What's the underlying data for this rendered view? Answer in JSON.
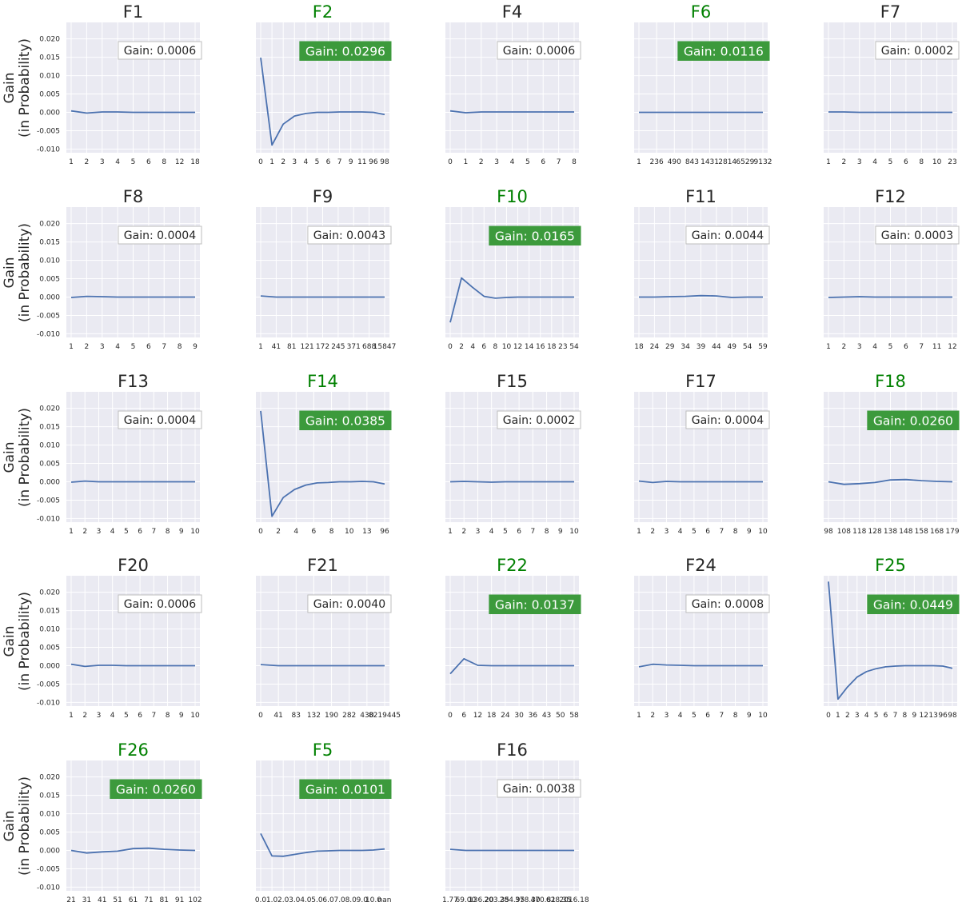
{
  "ylabel": "Gain\n(in Probability)",
  "colors": {
    "panel_bg": "#EAEAF2",
    "line": "#4C72B0",
    "title_default": "#262626",
    "title_highlight": "#008000",
    "gain_box_highlight": "#3C9A3C"
  },
  "chart_data": [
    {
      "type": "line",
      "title": "F1",
      "gain_label": "Gain: 0.0006",
      "highlight": false,
      "xticks": [
        "1",
        "2",
        "3",
        "4",
        "5",
        "6",
        "8",
        "12",
        "18"
      ],
      "y": [
        0.0004,
        -0.0002,
        0.0001,
        0.0001,
        0,
        0,
        0,
        0,
        0
      ],
      "ylim": [
        -0.011,
        0.0245
      ],
      "yticks": [
        "-0.010",
        "-0.005",
        "0.000",
        "0.005",
        "0.010",
        "0.015",
        "0.020"
      ]
    },
    {
      "type": "line",
      "title": "F2",
      "gain_label": "Gain: 0.0296",
      "highlight": true,
      "xticks": [
        "0",
        "1",
        "2",
        "3",
        "4",
        "5",
        "6",
        "7",
        "9",
        "11",
        "96",
        "98"
      ],
      "y": [
        0.0149,
        -0.0089,
        -0.0032,
        -0.001,
        -0.0003,
        0,
        0,
        0.0001,
        0.0001,
        0.0001,
        0,
        -0.0006
      ],
      "ylim": [
        -0.011,
        0.0245
      ]
    },
    {
      "type": "line",
      "title": "F4",
      "gain_label": "Gain: 0.0006",
      "highlight": false,
      "xticks": [
        "0",
        "1",
        "2",
        "3",
        "4",
        "5",
        "6",
        "7",
        "8"
      ],
      "y": [
        0.0004,
        -0.0001,
        0.0001,
        0.0001,
        0.0001,
        0.0001,
        0.0001,
        0.0001,
        0.0001
      ],
      "ylim": [
        -0.011,
        0.0245
      ]
    },
    {
      "type": "line",
      "title": "F6",
      "gain_label": "Gain: 0.0116",
      "highlight": true,
      "xticks": [
        "1",
        "236",
        "490",
        "843",
        "1431",
        "2814",
        "6529",
        "9132"
      ],
      "y": [
        0,
        0,
        0,
        0,
        0,
        0,
        0,
        0
      ],
      "ylim": [
        -0.011,
        0.0245
      ]
    },
    {
      "type": "line",
      "title": "F7",
      "gain_label": "Gain: 0.0002",
      "highlight": false,
      "xticks": [
        "1",
        "2",
        "3",
        "4",
        "5",
        "6",
        "8",
        "10",
        "23"
      ],
      "y": [
        0.0001,
        0.0001,
        0,
        0,
        0,
        0,
        0,
        0,
        0
      ],
      "ylim": [
        -0.011,
        0.0245
      ]
    },
    {
      "type": "line",
      "title": "F8",
      "gain_label": "Gain: 0.0004",
      "highlight": false,
      "xticks": [
        "1",
        "2",
        "3",
        "4",
        "5",
        "6",
        "7",
        "8",
        "9"
      ],
      "y": [
        -0.0001,
        0.0002,
        0.0001,
        0,
        0,
        0,
        0,
        0,
        0
      ],
      "ylim": [
        -0.011,
        0.0245
      ],
      "yticks": [
        "-0.010",
        "-0.005",
        "0.000",
        "0.005",
        "0.010",
        "0.015",
        "0.020"
      ]
    },
    {
      "type": "line",
      "title": "F9",
      "gain_label": "Gain: 0.0043",
      "highlight": false,
      "xticks": [
        "1",
        "41",
        "81",
        "121",
        "172",
        "245",
        "371",
        "688",
        "15847"
      ],
      "y": [
        0.0003,
        0,
        0,
        0,
        0,
        0,
        0,
        0,
        0
      ],
      "ylim": [
        -0.011,
        0.0245
      ]
    },
    {
      "type": "line",
      "title": "F10",
      "gain_label": "Gain: 0.0165",
      "highlight": true,
      "xticks": [
        "0",
        "2",
        "4",
        "6",
        "8",
        "10",
        "12",
        "14",
        "16",
        "18",
        "23",
        "54"
      ],
      "y": [
        -0.0069,
        0.0052,
        0.0026,
        0.0002,
        -0.0003,
        -0.0001,
        0,
        0,
        0,
        0,
        0,
        0
      ],
      "ylim": [
        -0.011,
        0.0245
      ]
    },
    {
      "type": "line",
      "title": "F11",
      "gain_label": "Gain: 0.0044",
      "highlight": false,
      "xticks": [
        "18",
        "24",
        "29",
        "34",
        "39",
        "44",
        "49",
        "54",
        "59"
      ],
      "y": [
        0,
        0,
        0.0001,
        0.0002,
        0.0004,
        0.0003,
        -0.0001,
        0,
        0
      ],
      "ylim": [
        -0.011,
        0.0245
      ]
    },
    {
      "type": "line",
      "title": "F12",
      "gain_label": "Gain: 0.0003",
      "highlight": false,
      "xticks": [
        "1",
        "2",
        "3",
        "4",
        "5",
        "6",
        "7",
        "11",
        "12"
      ],
      "y": [
        -0.0001,
        0,
        0.0001,
        0,
        0,
        0,
        0,
        0,
        0
      ],
      "ylim": [
        -0.011,
        0.0245
      ]
    },
    {
      "type": "line",
      "title": "F13",
      "gain_label": "Gain: 0.0004",
      "highlight": false,
      "xticks": [
        "1",
        "2",
        "3",
        "4",
        "5",
        "6",
        "7",
        "8",
        "9",
        "10"
      ],
      "y": [
        -0.0001,
        0.0002,
        0,
        0,
        0,
        0,
        0,
        0,
        0,
        0
      ],
      "ylim": [
        -0.011,
        0.0245
      ],
      "yticks": [
        "-0.010",
        "-0.005",
        "0.000",
        "0.005",
        "0.010",
        "0.015",
        "0.020"
      ]
    },
    {
      "type": "line",
      "title": "F14",
      "gain_label": "Gain: 0.0385",
      "highlight": true,
      "xticks": [
        "0",
        "2",
        "4",
        "6",
        "8",
        "10",
        "13",
        "96"
      ],
      "y": [
        0.0193,
        -0.0094,
        -0.0043,
        -0.0021,
        -0.0009,
        -0.0003,
        -0.0002,
        0,
        0,
        0.0001,
        0,
        -0.0006
      ],
      "ylim": [
        -0.011,
        0.0245
      ]
    },
    {
      "type": "line",
      "title": "F15",
      "gain_label": "Gain: 0.0002",
      "highlight": false,
      "xticks": [
        "1",
        "2",
        "3",
        "4",
        "5",
        "6",
        "7",
        "8",
        "9",
        "10"
      ],
      "y": [
        0,
        0.0001,
        0,
        -0.0001,
        0,
        0,
        0,
        0,
        0,
        0
      ],
      "ylim": [
        -0.011,
        0.0245
      ]
    },
    {
      "type": "line",
      "title": "F17",
      "gain_label": "Gain: 0.0004",
      "highlight": false,
      "xticks": [
        "1",
        "2",
        "3",
        "4",
        "5",
        "6",
        "7",
        "8",
        "9",
        "10"
      ],
      "y": [
        0.0002,
        -0.0002,
        0.0001,
        0,
        0,
        0,
        0,
        0,
        0,
        0
      ],
      "ylim": [
        -0.011,
        0.0245
      ]
    },
    {
      "type": "line",
      "title": "F18",
      "gain_label": "Gain: 0.0260",
      "highlight": true,
      "xticks": [
        "98",
        "108",
        "118",
        "128",
        "138",
        "148",
        "158",
        "168",
        "179"
      ],
      "y": [
        0,
        -0.0007,
        -0.0005,
        -0.0002,
        0.0005,
        0.0006,
        0.0003,
        0.0001,
        0
      ],
      "ylim": [
        -0.011,
        0.0245
      ]
    },
    {
      "type": "line",
      "title": "F20",
      "gain_label": "Gain: 0.0006",
      "highlight": false,
      "xticks": [
        "1",
        "2",
        "3",
        "4",
        "5",
        "6",
        "7",
        "8",
        "9",
        "10"
      ],
      "y": [
        0.0004,
        -0.0002,
        0.0001,
        0.0001,
        0,
        0,
        0,
        0,
        0,
        0
      ],
      "ylim": [
        -0.011,
        0.0245
      ],
      "yticks": [
        "-0.010",
        "-0.005",
        "0.000",
        "0.005",
        "0.010",
        "0.015",
        "0.020"
      ]
    },
    {
      "type": "line",
      "title": "F21",
      "gain_label": "Gain: 0.0040",
      "highlight": false,
      "xticks": [
        "0",
        "41",
        "83",
        "132",
        "190",
        "282",
        "430",
        "8219445"
      ],
      "y": [
        0.0003,
        0,
        0,
        0,
        0,
        0,
        0,
        0
      ],
      "ylim": [
        -0.011,
        0.0245
      ]
    },
    {
      "type": "line",
      "title": "F22",
      "gain_label": "Gain: 0.0137",
      "highlight": true,
      "xticks": [
        "0",
        "6",
        "12",
        "18",
        "24",
        "30",
        "36",
        "43",
        "50",
        "58"
      ],
      "y": [
        -0.0022,
        0.0019,
        0.0001,
        0,
        0,
        0,
        0,
        0,
        0,
        0
      ],
      "ylim": [
        -0.011,
        0.0245
      ]
    },
    {
      "type": "line",
      "title": "F24",
      "gain_label": "Gain: 0.0008",
      "highlight": false,
      "xticks": [
        "1",
        "2",
        "3",
        "4",
        "5",
        "6",
        "7",
        "8",
        "9",
        "10"
      ],
      "y": [
        -0.0003,
        0.0004,
        0.0002,
        0.0001,
        0,
        0,
        0,
        0,
        0,
        0
      ],
      "ylim": [
        -0.011,
        0.0245
      ]
    },
    {
      "type": "line",
      "title": "F25",
      "gain_label": "Gain: 0.0449",
      "highlight": true,
      "xticks": [
        "0",
        "1",
        "2",
        "3",
        "4",
        "5",
        "6",
        "7",
        "8",
        "9",
        "12",
        "13",
        "96",
        "98"
      ],
      "y": [
        0.0229,
        -0.0091,
        -0.0058,
        -0.0031,
        -0.0016,
        -0.0008,
        -0.0003,
        -0.0001,
        0,
        0,
        0,
        0,
        -0.0001,
        -0.0007
      ],
      "ylim": [
        -0.011,
        0.0245
      ]
    },
    {
      "type": "line",
      "title": "F26",
      "gain_label": "Gain: 0.0260",
      "highlight": true,
      "xticks": [
        "21",
        "31",
        "41",
        "51",
        "61",
        "71",
        "81",
        "91",
        "102"
      ],
      "y": [
        0,
        -0.0007,
        -0.0004,
        -0.0002,
        0.0005,
        0.0006,
        0.0003,
        0.0001,
        0
      ],
      "ylim": [
        -0.011,
        0.0245
      ],
      "yticks": [
        "-0.010",
        "-0.005",
        "0.000",
        "0.005",
        "0.010",
        "0.015",
        "0.020"
      ]
    },
    {
      "type": "line",
      "title": "F5",
      "gain_label": "Gain: 0.0101",
      "highlight": true,
      "xticks": [
        "0.0",
        "1.0",
        "2.0",
        "3.0",
        "4.0",
        "5.0",
        "6.0",
        "7.0",
        "8.0",
        "9.0",
        "10.0",
        "nan"
      ],
      "y": [
        0.0046,
        -0.0015,
        -0.0016,
        -0.0011,
        -0.0006,
        -0.0002,
        -0.0001,
        0,
        0,
        0,
        0.0001,
        0.0004
      ],
      "ylim": [
        -0.011,
        0.0245
      ]
    },
    {
      "type": "line",
      "title": "F16",
      "gain_label": "Gain: 0.0038",
      "highlight": false,
      "xticks": [
        "1.77",
        "69.00",
        "136.20",
        "203.35",
        "284.95",
        "378.30",
        "470.81",
        "628.35",
        "2016.18"
      ],
      "y": [
        0.0003,
        0,
        0,
        0,
        0,
        0,
        0,
        0,
        0
      ],
      "ylim": [
        -0.011,
        0.0245
      ]
    }
  ]
}
